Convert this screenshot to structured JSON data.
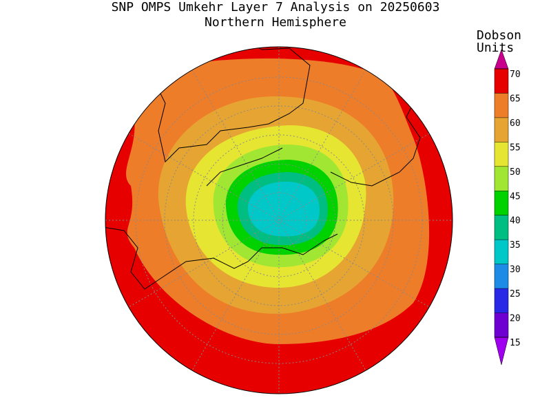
{
  "header": {
    "title": "SNP OMPS Umkehr Layer 7 Analysis on 20250603",
    "subtitle": "Northern Hemisphere"
  },
  "colorbar": {
    "label": [
      "Dobson",
      "Units"
    ],
    "ticks": [
      70,
      65,
      60,
      55,
      50,
      45,
      40,
      35,
      30,
      25,
      20,
      15
    ],
    "colors": [
      "#c8008c",
      "#e60000",
      "#ee7d2a",
      "#e6a532",
      "#e6e632",
      "#a0e632",
      "#00d200",
      "#00be82",
      "#00c8c8",
      "#1e8ce6",
      "#2828e6",
      "#6e00d2",
      "#a000f0"
    ]
  }
}
